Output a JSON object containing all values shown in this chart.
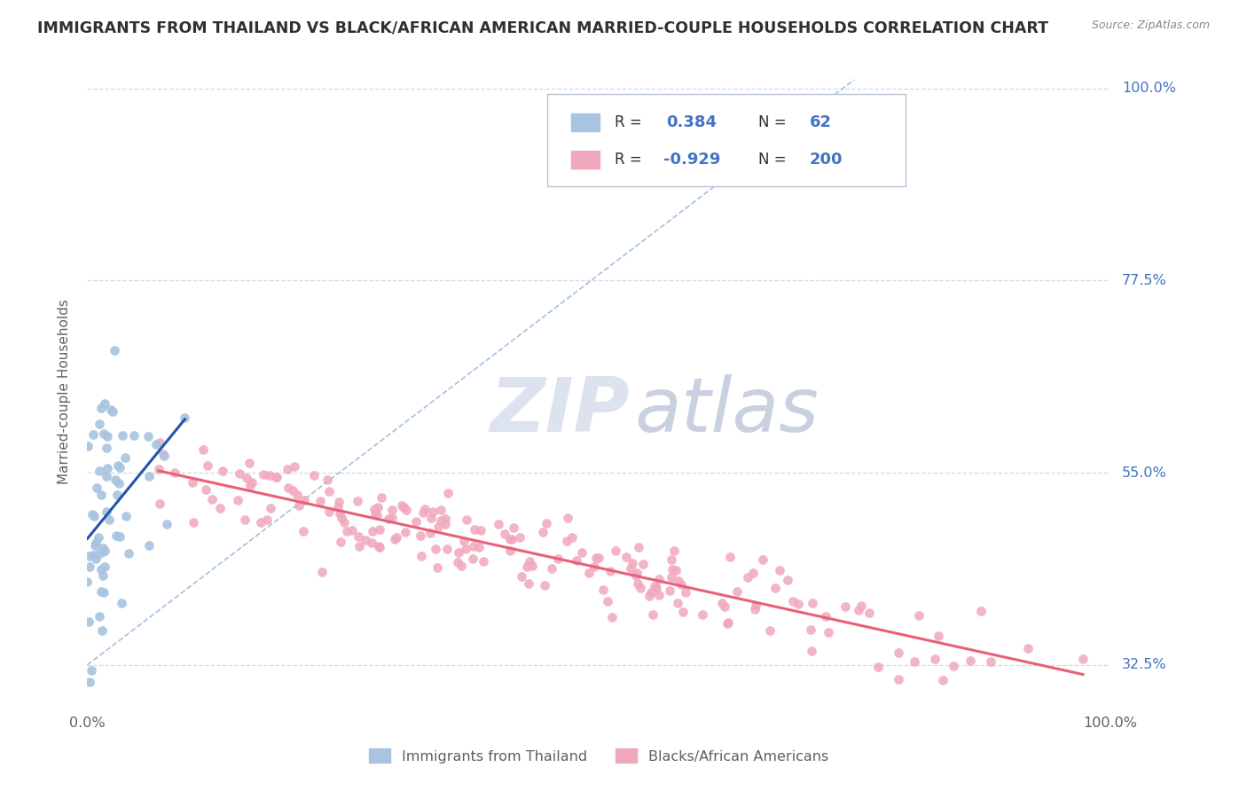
{
  "title": "IMMIGRANTS FROM THAILAND VS BLACK/AFRICAN AMERICAN MARRIED-COUPLE HOUSEHOLDS CORRELATION CHART",
  "source": "Source: ZipAtlas.com",
  "ylabel": "Married-couple Households",
  "xmin": 0.0,
  "xmax": 1.0,
  "ymin": 0.27,
  "ymax": 1.02,
  "yticks": [
    0.325,
    0.55,
    0.775,
    1.0
  ],
  "ytick_labels": [
    "32.5%",
    "55.0%",
    "77.5%",
    "100.0%"
  ],
  "series1_color": "#a8c4e0",
  "series2_color": "#f0a8bc",
  "series1_line_color": "#2255aa",
  "series2_line_color": "#e8607a",
  "series1_label": "Immigrants from Thailand",
  "series2_label": "Blacks/African Americans",
  "ref_line_color": "#90b0d8",
  "grid_color": "#c8d0dc",
  "title_color": "#303030",
  "axis_label_color": "#606060",
  "right_label_color": "#4472c4",
  "watermark_zip_color": "#c0cce0",
  "watermark_atlas_color": "#8899bb",
  "background_color": "#ffffff",
  "n1": 62,
  "n2": 200,
  "r1": 0.384,
  "r2": -0.929
}
